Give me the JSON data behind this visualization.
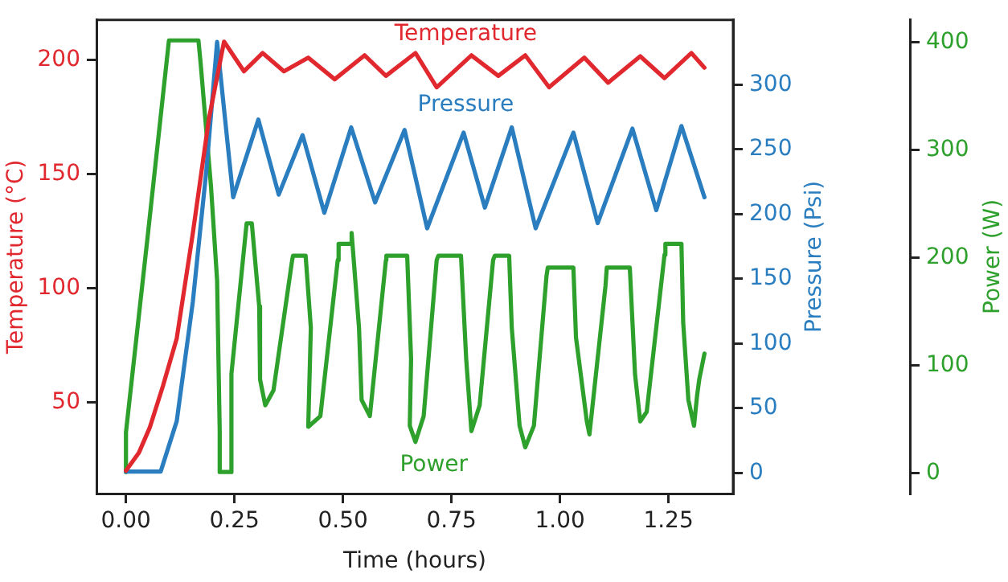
{
  "chart_data": {
    "type": "line",
    "xlabel": "Time (hours)",
    "ylabel": "Temperature (°C)",
    "y2label": "Pressure (Psi)",
    "y3label": "Power (W)",
    "xlim": [
      -0.068,
      1.399
    ],
    "xticks": [
      {
        "value": 0,
        "label": "0.00"
      },
      {
        "value": 0.25,
        "label": "0.25"
      },
      {
        "value": 0.5,
        "label": "0.50"
      },
      {
        "value": 0.75,
        "label": "0.75"
      },
      {
        "value": 1,
        "label": "1.00"
      },
      {
        "value": 1.25,
        "label": "1.25"
      }
    ],
    "ylim": [
      10,
      217.5
    ],
    "yticks": [
      50,
      100,
      150,
      200
    ],
    "y2lim": [
      -16,
      350
    ],
    "y2ticks": [
      0,
      50,
      100,
      150,
      200,
      250,
      300
    ],
    "y3lim": [
      -19,
      421
    ],
    "y3ticks": [
      0,
      100,
      200,
      300,
      400
    ],
    "grid": false,
    "legend": false,
    "marker": "none",
    "line_style": "solid",
    "series": [
      {
        "name": "Temperature",
        "color": "#e0282e",
        "x": [
          0,
          0.03,
          0.055,
          0.085,
          0.117,
          0.154,
          0.191,
          0.226,
          0.272,
          0.315,
          0.364,
          0.42,
          0.481,
          0.55,
          0.599,
          0.667,
          0.716,
          0.796,
          0.858,
          0.92,
          0.975,
          1.056,
          1.111,
          1.185,
          1.241,
          1.303,
          1.333
        ],
        "values": [
          20,
          28,
          39,
          57,
          78,
          124,
          174,
          208,
          195,
          203,
          195,
          201,
          191.5,
          202,
          193,
          203,
          188,
          202,
          193,
          202,
          188,
          201,
          190,
          201.6,
          192,
          203,
          196.6
        ]
      },
      {
        "name": "Pressure",
        "color": "#2a7ec0",
        "axis": "y2",
        "x": [
          0,
          0.08,
          0.117,
          0.154,
          0.185,
          0.21,
          0.247,
          0.305,
          0.352,
          0.407,
          0.457,
          0.519,
          0.574,
          0.642,
          0.694,
          0.778,
          0.827,
          0.889,
          0.944,
          1.031,
          1.087,
          1.167,
          1.222,
          1.28,
          1.333
        ],
        "values": [
          1,
          1,
          40,
          132,
          233,
          333,
          213,
          273,
          215,
          261,
          201,
          267,
          209,
          265,
          189,
          263,
          205,
          267,
          189,
          263,
          193,
          266,
          203,
          268,
          213
        ]
      },
      {
        "name": "Power",
        "color": "#2ea02c",
        "axis": "y3",
        "x": [
          0,
          0,
          0.05,
          0.099,
          0.167,
          0.172,
          0.196,
          0.21,
          0.216,
          0.216,
          0.243,
          0.243,
          0.278,
          0.29,
          0.307,
          0.309,
          0.321,
          0.34,
          0.383,
          0.385,
          0.414,
          0.426,
          0.42,
          0.448,
          0.488,
          0.49,
          0.519,
          0.52,
          0.537,
          0.543,
          0.562,
          0.599,
          0.6,
          0.648,
          0.657,
          0.654,
          0.667,
          0.686,
          0.716,
          0.72,
          0.772,
          0.784,
          0.796,
          0.815,
          0.846,
          0.85,
          0.883,
          0.889,
          0.907,
          0.92,
          0.94,
          0.969,
          0.972,
          1.031,
          1.037,
          1.062,
          1.068,
          1.105,
          1.108,
          1.161,
          1.173,
          1.185,
          1.2,
          1.241,
          1.243,
          1.28,
          1.284,
          1.296,
          1.309,
          1.316,
          1.321,
          1.333
        ],
        "values": [
          1,
          38,
          220,
          402,
          402,
          381,
          266,
          179,
          39,
          1,
          1,
          92,
          232,
          232,
          155,
          87,
          63,
          77,
          198,
          202,
          202,
          135,
          43,
          53,
          198,
          213,
          213,
          223,
          135,
          68,
          53,
          198,
          202,
          202,
          106,
          44,
          29,
          53,
          198,
          202,
          202,
          106,
          39,
          63,
          198,
          202,
          202,
          135,
          44,
          24,
          44,
          183,
          191,
          191,
          126,
          48,
          36,
          174,
          191,
          191,
          92,
          48,
          57,
          203,
          213,
          213,
          140,
          68,
          44,
          72,
          87,
          111
        ]
      }
    ]
  }
}
